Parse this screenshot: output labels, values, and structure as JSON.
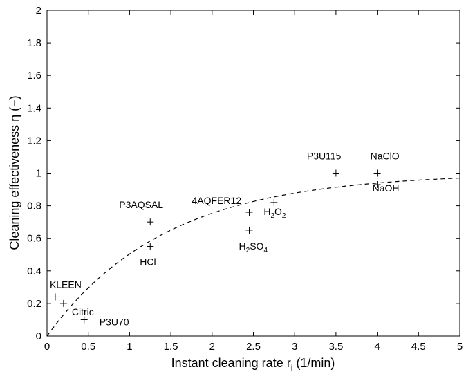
{
  "chart_data": {
    "type": "scatter",
    "title": "",
    "xlabel": "Instant cleaning rate r",
    "xlabel_sub": "i",
    "xlabel_unit": " (1/min)",
    "ylabel": "Cleaning effectiveness η (−)",
    "xlim": [
      0,
      5
    ],
    "ylim": [
      0,
      2
    ],
    "xticks": [
      "0",
      "0.5",
      "1",
      "1.5",
      "2",
      "2.5",
      "3",
      "3.5",
      "4",
      "4.5",
      "5"
    ],
    "yticks": [
      "0",
      "0.2",
      "0.4",
      "0.6",
      "0.8",
      "1",
      "1.2",
      "1.4",
      "1.6",
      "1.8",
      "2"
    ],
    "grid": false,
    "marker": "+",
    "points": [
      {
        "label": "KLEEN",
        "x": 0.1,
        "y": 0.24
      },
      {
        "label": "Citric",
        "x": 0.2,
        "y": 0.2
      },
      {
        "label": "P3U70",
        "x": 0.45,
        "y": 0.1
      },
      {
        "label": "P3AQSAL",
        "x": 1.25,
        "y": 0.7
      },
      {
        "label": "HCl",
        "x": 1.25,
        "y": 0.55
      },
      {
        "label": "4AQFER12",
        "x": 2.45,
        "y": 0.76
      },
      {
        "label": "H2SO4",
        "label_main": "H",
        "label_sub": "2",
        "label_rest": "SO",
        "label_sub2": "4",
        "x": 2.45,
        "y": 0.65
      },
      {
        "label": "H2O2",
        "label_main": "H",
        "label_sub": "2",
        "label_rest": "O",
        "label_sub2": "2",
        "x": 2.75,
        "y": 0.82
      },
      {
        "label": "P3U115",
        "x": 3.5,
        "y": 1.0
      },
      {
        "label": "NaClO",
        "x": 4.0,
        "y": 1.0
      },
      {
        "label": "NaOH",
        "x": 4.0,
        "y": 0.93
      }
    ],
    "fit_curve": {
      "style": "dashed",
      "model": "1 - exp(-0.7 x)"
    }
  }
}
